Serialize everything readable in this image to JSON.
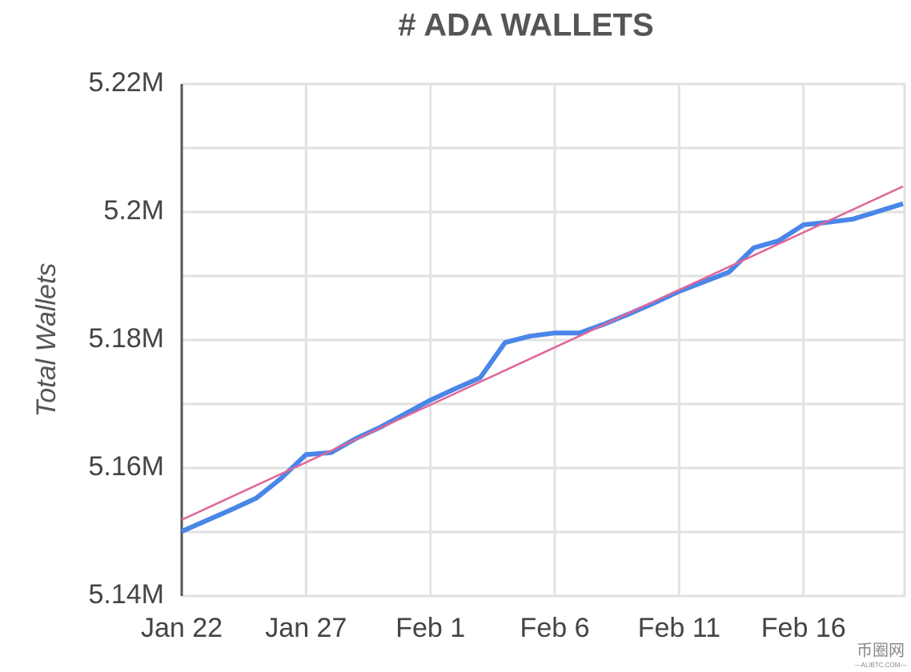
{
  "chart_data": {
    "type": "line",
    "title": "# ADA WALLETS",
    "ylabel": "Total Wallets",
    "categories": [
      "Jan 22",
      null,
      null,
      null,
      null,
      "Jan 27",
      null,
      null,
      null,
      null,
      "Feb 1",
      null,
      null,
      null,
      null,
      "Feb 6",
      null,
      null,
      null,
      null,
      "Feb 11",
      null,
      null,
      null,
      null,
      "Feb 16",
      null,
      null,
      null,
      null
    ],
    "series": [
      {
        "color": "#4a86e8",
        "values": [
          5.1501,
          5.1518,
          5.1535,
          5.1553,
          5.1584,
          5.1621,
          5.1624,
          5.1646,
          5.1664,
          5.1685,
          5.1706,
          5.1724,
          5.1741,
          5.1796,
          5.1806,
          5.1811,
          5.1811,
          5.1825,
          5.1841,
          5.1858,
          5.1876,
          5.1891,
          5.1906,
          5.1944,
          5.1955,
          5.198,
          5.1984,
          5.1989,
          5.2001,
          5.2013
        ]
      }
    ],
    "trendline": {
      "color": "#e06699",
      "values": [
        5.1519,
        5.204
      ]
    },
    "ylim": [
      5.14,
      5.22
    ],
    "yticks": [
      {
        "value": 5.14,
        "label": "5.14M"
      },
      {
        "value": 5.16,
        "label": "5.16M"
      },
      {
        "value": 5.18,
        "label": "5.18M"
      },
      {
        "value": 5.2,
        "label": "5.2M"
      },
      {
        "value": 5.22,
        "label": "5.22M"
      }
    ],
    "minor_yticks": [
      5.15,
      5.17,
      5.19,
      5.21
    ],
    "grid": true,
    "watermark": "币圈网",
    "watermark_sub": "—ALIBTC.COM—"
  }
}
